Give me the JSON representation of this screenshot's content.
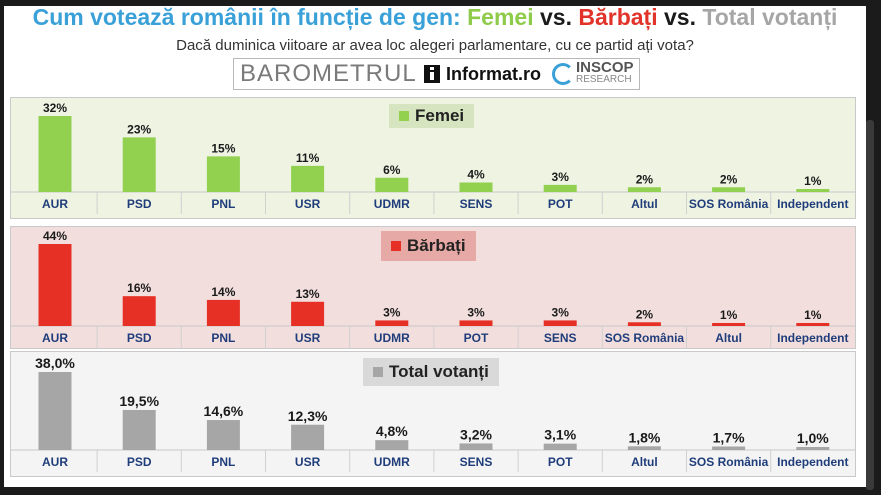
{
  "header": {
    "title_main": "Cum votează românii în funcție de gen:",
    "title_fem": "Femei",
    "title_vs1": "vs.",
    "title_bar": "Bărbați",
    "title_vs2": "vs.",
    "title_tot": "Total votanți",
    "subtitle": "Dacă duminica viitoare ar avea loc alegeri parlamentare, cu ce partid ați vota?",
    "logo_barometrul": "BAROMETRUL",
    "logo_informat": "Informat.ro",
    "logo_inscop": "INSCOP",
    "logo_research": "RESEARCH"
  },
  "colors": {
    "femei": "#92d050",
    "femei_bg": "#eef3e2",
    "femei_legend_bg": "#d6e5bf",
    "barbati": "#e63026",
    "barbati_bg": "#f3dede",
    "barbati_legend_bg": "#e6a9a6",
    "total": "#a6a6a6",
    "total_bg": "#f4f4f4",
    "total_legend_bg": "#d9d9d9"
  },
  "chart_data": [
    {
      "type": "bar",
      "legend": "Femei",
      "categories": [
        "AUR",
        "PSD",
        "PNL",
        "USR",
        "UDMR",
        "SENS",
        "POT",
        "Altul",
        "SOS România",
        "Independent"
      ],
      "values": [
        32,
        23,
        15,
        11,
        6,
        4,
        3,
        2,
        2,
        1
      ],
      "labels": [
        "32%",
        "23%",
        "15%",
        "11%",
        "6%",
        "4%",
        "3%",
        "2%",
        "2%",
        "1%"
      ]
    },
    {
      "type": "bar",
      "legend": "Bărbați",
      "categories": [
        "AUR",
        "PSD",
        "PNL",
        "USR",
        "UDMR",
        "POT",
        "SENS",
        "SOS România",
        "Altul",
        "Independent"
      ],
      "values": [
        44,
        16,
        14,
        13,
        3,
        3,
        3,
        2,
        1,
        1
      ],
      "labels": [
        "44%",
        "16%",
        "14%",
        "13%",
        "3%",
        "3%",
        "3%",
        "2%",
        "1%",
        "1%"
      ]
    },
    {
      "type": "bar",
      "legend": "Total votanți",
      "categories": [
        "AUR",
        "PSD",
        "PNL",
        "USR",
        "UDMR",
        "SENS",
        "POT",
        "Altul",
        "SOS România",
        "Independent"
      ],
      "values": [
        38.0,
        19.5,
        14.6,
        12.3,
        4.8,
        3.2,
        3.1,
        1.8,
        1.7,
        1.0
      ],
      "labels": [
        "38,0%",
        "19,5%",
        "14,6%",
        "12,3%",
        "4,8%",
        "3,2%",
        "3,1%",
        "1,8%",
        "1,7%",
        "1,0%"
      ]
    }
  ]
}
